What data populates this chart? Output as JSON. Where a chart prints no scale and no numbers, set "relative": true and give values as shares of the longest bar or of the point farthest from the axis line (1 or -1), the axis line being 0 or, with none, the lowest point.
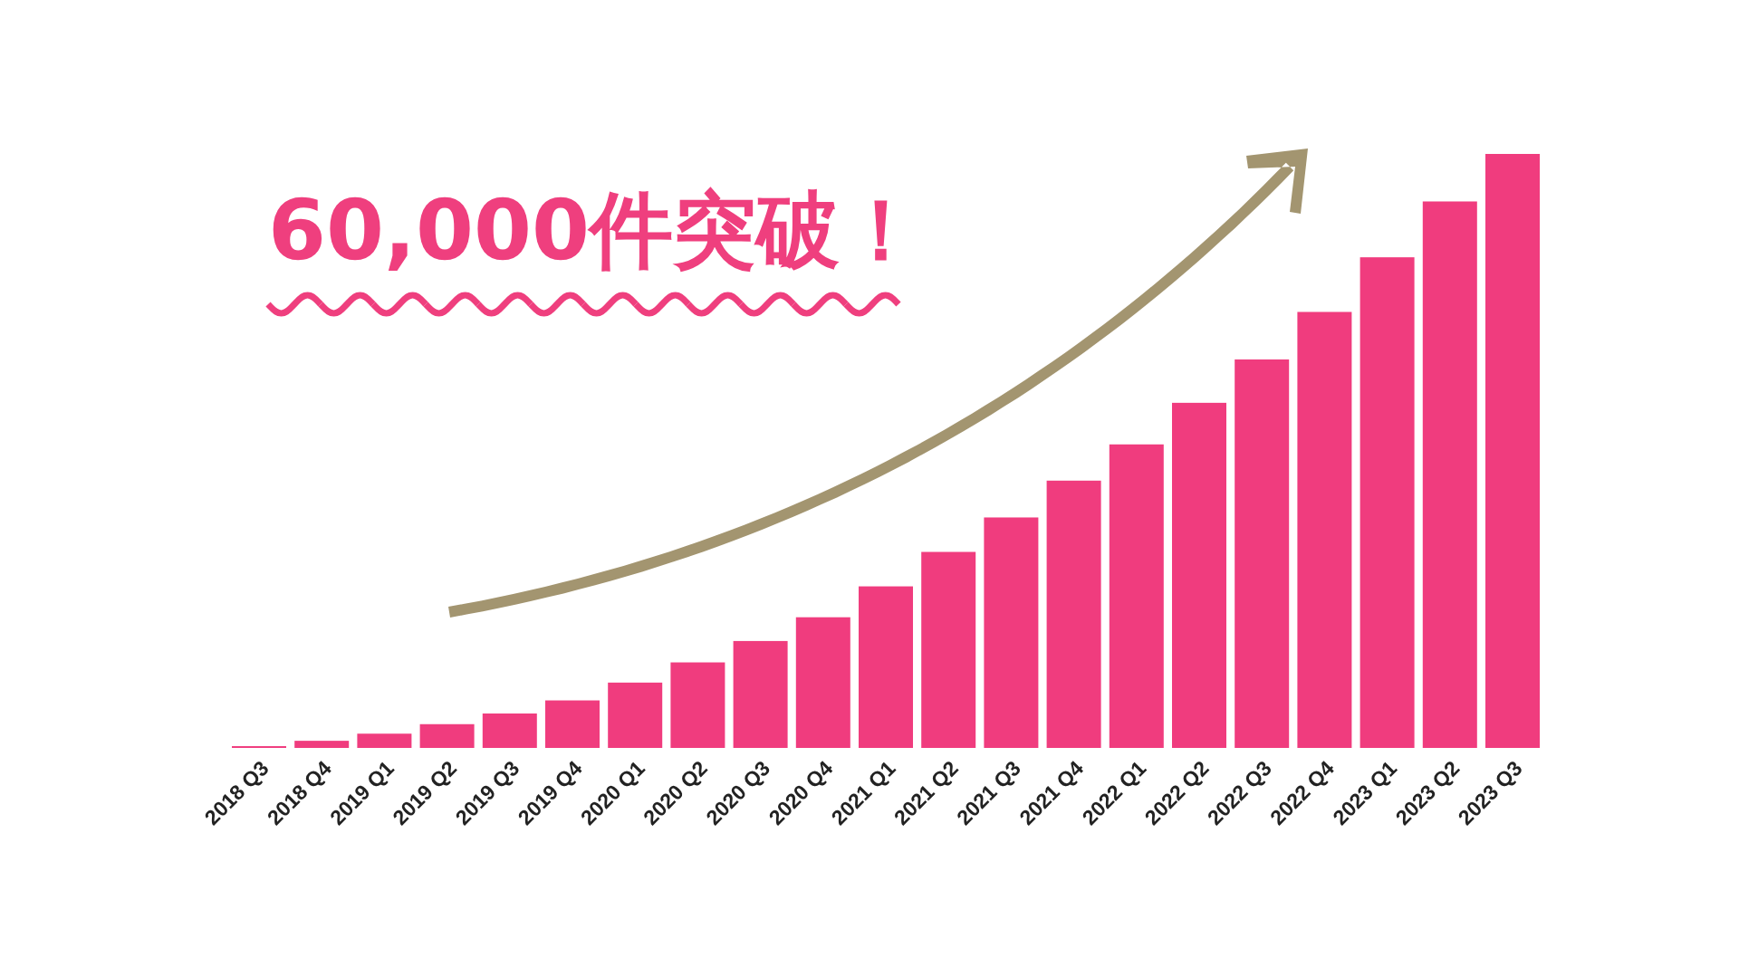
{
  "chart_data": {
    "type": "bar",
    "title": "60,000件突破！",
    "relative": true,
    "color": "#f03c7e",
    "categories": [
      "2018 Q3",
      "2018 Q4",
      "2019 Q1",
      "2019 Q2",
      "2019 Q3",
      "2019 Q4",
      "2020 Q1",
      "2020 Q2",
      "2020 Q3",
      "2020 Q4",
      "2021 Q1",
      "2021 Q2",
      "2021 Q3",
      "2021 Q4",
      "2022 Q1",
      "2022 Q2",
      "2022 Q3",
      "2022 Q4",
      "2023 Q1",
      "2023 Q2",
      "2023 Q3"
    ],
    "values": [
      0.003,
      0.012,
      0.024,
      0.04,
      0.058,
      0.08,
      0.11,
      0.144,
      0.18,
      0.22,
      0.272,
      0.33,
      0.388,
      0.45,
      0.511,
      0.581,
      0.654,
      0.734,
      0.826,
      0.92,
      1
    ]
  }
}
